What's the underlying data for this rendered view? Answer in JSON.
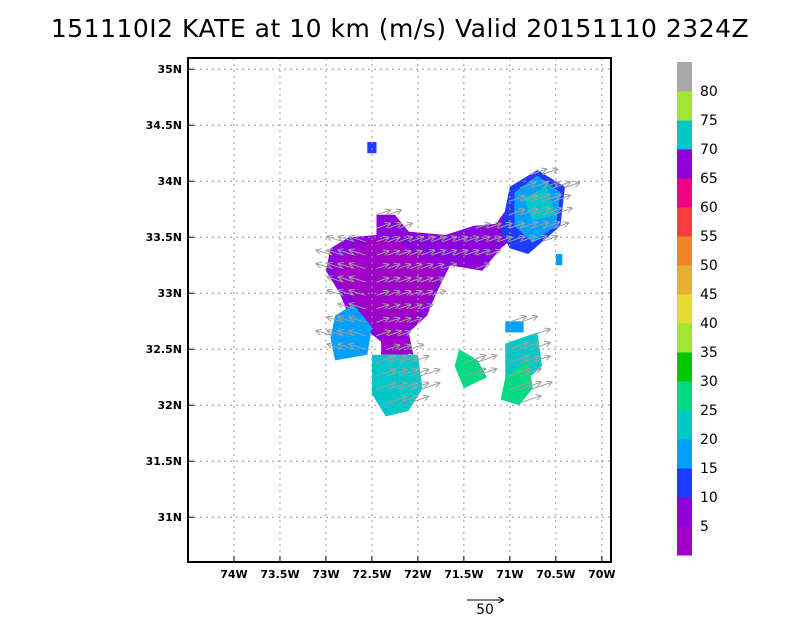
{
  "title": "151110I2 KATE at 10 km (m/s) Valid 20151110 2324Z",
  "chart_data": {
    "type": "heatmap",
    "title": "151110I2 KATE at 10 km (m/s) Valid 20151110 2324Z",
    "xlim": [
      -74.5,
      -69.9
    ],
    "ylim": [
      30.6,
      35.1
    ],
    "x_ticks": [
      {
        "value": -74,
        "label": "74W"
      },
      {
        "value": -73.5,
        "label": "73.5W"
      },
      {
        "value": -73,
        "label": "73W"
      },
      {
        "value": -72.5,
        "label": "72.5W"
      },
      {
        "value": -72,
        "label": "72W"
      },
      {
        "value": -71.5,
        "label": "71.5W"
      },
      {
        "value": -71,
        "label": "71W"
      },
      {
        "value": -70.5,
        "label": "70.5W"
      },
      {
        "value": -70,
        "label": "70W"
      }
    ],
    "y_ticks": [
      {
        "value": 31,
        "label": "31N"
      },
      {
        "value": 31.5,
        "label": "31.5N"
      },
      {
        "value": 32,
        "label": "32N"
      },
      {
        "value": 32.5,
        "label": "32.5N"
      },
      {
        "value": 33,
        "label": "33N"
      },
      {
        "value": 33.5,
        "label": "33.5N"
      },
      {
        "value": 34,
        "label": "34N"
      },
      {
        "value": 34.5,
        "label": "34.5N"
      },
      {
        "value": 35,
        "label": "35N"
      }
    ],
    "grid": true,
    "colorbar": {
      "labels": [
        "5",
        "10",
        "15",
        "20",
        "25",
        "30",
        "35",
        "40",
        "45",
        "50",
        "55",
        "60",
        "65",
        "70",
        "75",
        "80"
      ],
      "colors": [
        "#a000c8",
        "#8c00dc",
        "#1e3cff",
        "#00a0ff",
        "#00c8c8",
        "#00dc82",
        "#00c800",
        "#a0e632",
        "#e6dc32",
        "#e6af2d",
        "#f08228",
        "#fa3c3c",
        "#f00082",
        "#8c00dc",
        "#00c8c8",
        "#a0e632",
        "#a8a8a8"
      ]
    },
    "regions": [
      {
        "name": "main-blue",
        "speed": 10,
        "polygon": [
          [
            -72.95,
            33.4
          ],
          [
            -72.75,
            33.5
          ],
          [
            -72.45,
            33.52
          ],
          [
            -72.45,
            33.7
          ],
          [
            -72.25,
            33.7
          ],
          [
            -72.1,
            33.55
          ],
          [
            -71.7,
            33.52
          ],
          [
            -71.4,
            33.6
          ],
          [
            -71.15,
            33.62
          ],
          [
            -70.95,
            33.85
          ],
          [
            -70.95,
            33.5
          ],
          [
            -71.1,
            33.4
          ],
          [
            -71.3,
            33.2
          ],
          [
            -71.65,
            33.25
          ],
          [
            -71.8,
            33.0
          ],
          [
            -71.9,
            32.8
          ],
          [
            -72.1,
            32.65
          ],
          [
            -72.05,
            32.45
          ],
          [
            -72.3,
            32.5
          ],
          [
            -72.75,
            32.8
          ],
          [
            -72.85,
            33.0
          ],
          [
            -73.0,
            33.2
          ]
        ]
      },
      {
        "name": "main-purple",
        "speed": 5,
        "polygon": [
          [
            -72.9,
            33.3
          ],
          [
            -72.5,
            33.5
          ],
          [
            -72.2,
            33.45
          ],
          [
            -71.95,
            33.3
          ],
          [
            -71.75,
            33.2
          ],
          [
            -71.85,
            33.0
          ],
          [
            -72.05,
            32.75
          ],
          [
            -72.2,
            32.6
          ],
          [
            -72.45,
            32.65
          ],
          [
            -72.65,
            32.9
          ],
          [
            -72.85,
            33.1
          ]
        ]
      },
      {
        "name": "purple-south",
        "speed": 5,
        "polygon": [
          [
            -72.4,
            32.6
          ],
          [
            -72.1,
            32.6
          ],
          [
            -72.1,
            32.45
          ],
          [
            -72.4,
            32.45
          ]
        ]
      },
      {
        "name": "sw-teal",
        "speed": 20,
        "polygon": [
          [
            -72.9,
            32.8
          ],
          [
            -72.7,
            32.9
          ],
          [
            -72.5,
            32.7
          ],
          [
            -72.55,
            32.45
          ],
          [
            -72.9,
            32.4
          ],
          [
            -72.95,
            32.6
          ]
        ]
      },
      {
        "name": "south-teal",
        "speed": 25,
        "polygon": [
          [
            -72.5,
            32.45
          ],
          [
            -72.0,
            32.45
          ],
          [
            -71.95,
            32.15
          ],
          [
            -72.1,
            31.95
          ],
          [
            -72.35,
            31.9
          ],
          [
            -72.5,
            32.1
          ]
        ]
      },
      {
        "name": "ne-blue",
        "speed": 15,
        "polygon": [
          [
            -71.1,
            33.55
          ],
          [
            -71.0,
            33.95
          ],
          [
            -70.7,
            34.1
          ],
          [
            -70.4,
            33.95
          ],
          [
            -70.45,
            33.6
          ],
          [
            -70.8,
            33.35
          ],
          [
            -71.0,
            33.4
          ]
        ]
      },
      {
        "name": "ne-teal",
        "speed": 20,
        "polygon": [
          [
            -70.95,
            33.9
          ],
          [
            -70.7,
            34.05
          ],
          [
            -70.45,
            33.9
          ],
          [
            -70.5,
            33.6
          ],
          [
            -70.75,
            33.45
          ],
          [
            -70.95,
            33.6
          ]
        ]
      },
      {
        "name": "ne-green",
        "speed": 25,
        "polygon": [
          [
            -70.85,
            33.85
          ],
          [
            -70.6,
            33.95
          ],
          [
            -70.5,
            33.7
          ],
          [
            -70.75,
            33.65
          ]
        ]
      },
      {
        "name": "island-blue",
        "speed": 15,
        "polygon": [
          [
            -72.55,
            34.35
          ],
          [
            -72.45,
            34.35
          ],
          [
            -72.45,
            34.25
          ],
          [
            -72.55,
            34.25
          ]
        ]
      },
      {
        "name": "tiny-teal",
        "speed": 20,
        "polygon": [
          [
            -70.5,
            33.35
          ],
          [
            -70.43,
            33.35
          ],
          [
            -70.43,
            33.25
          ],
          [
            -70.5,
            33.25
          ]
        ]
      },
      {
        "name": "mid-green",
        "speed": 30,
        "polygon": [
          [
            -71.55,
            32.5
          ],
          [
            -71.35,
            32.4
          ],
          [
            -71.25,
            32.25
          ],
          [
            -71.5,
            32.15
          ],
          [
            -71.6,
            32.35
          ]
        ]
      },
      {
        "name": "right-teal",
        "speed": 25,
        "polygon": [
          [
            -71.05,
            32.55
          ],
          [
            -70.7,
            32.65
          ],
          [
            -70.65,
            32.35
          ],
          [
            -70.85,
            32.2
          ],
          [
            -71.05,
            32.25
          ]
        ]
      },
      {
        "name": "right-green",
        "speed": 30,
        "polygon": [
          [
            -71.05,
            32.25
          ],
          [
            -70.8,
            32.4
          ],
          [
            -70.75,
            32.15
          ],
          [
            -70.9,
            32.0
          ],
          [
            -71.1,
            32.05
          ]
        ]
      },
      {
        "name": "tiny-teal-2",
        "speed": 20,
        "polygon": [
          [
            -71.05,
            32.75
          ],
          [
            -70.85,
            32.75
          ],
          [
            -70.85,
            32.65
          ],
          [
            -71.05,
            32.65
          ]
        ]
      }
    ],
    "vector_reference": {
      "label": "50"
    }
  }
}
